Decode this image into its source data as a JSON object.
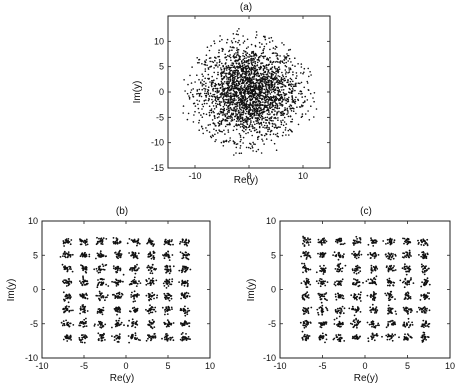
{
  "chart_data": [
    {
      "type": "scatter",
      "title": "(a)",
      "xlabel": "Re(y)",
      "ylabel": "Im(y)",
      "xlim": [
        -15,
        15
      ],
      "ylim": [
        -15,
        15
      ],
      "xticks": [
        -10,
        0,
        10
      ],
      "yticks": [
        -15,
        -10,
        -5,
        0,
        5,
        10
      ],
      "grid": false,
      "description_of_points": "dense unstructured cloud of received samples",
      "cloud": {
        "center": [
          0,
          0
        ],
        "extent_x": [
          -12,
          12
        ],
        "extent_y": [
          -12,
          12
        ]
      }
    },
    {
      "type": "scatter",
      "title": "(b)",
      "xlabel": "Re(y)",
      "ylabel": "Im(y)",
      "xlim": [
        -10,
        10
      ],
      "ylim": [
        -10,
        10
      ],
      "xticks": [
        -10,
        -5,
        0,
        5,
        10
      ],
      "yticks": [
        -10,
        -5,
        0,
        5,
        10
      ],
      "grid": false,
      "constellation_levels": [
        -7,
        -5,
        -3,
        -1,
        1,
        3,
        5,
        7
      ]
    },
    {
      "type": "scatter",
      "title": "(c)",
      "xlabel": "Re(y)",
      "ylabel": "Im(y)",
      "xlim": [
        -10,
        10
      ],
      "ylim": [
        -10,
        10
      ],
      "xticks": [
        -10,
        -5,
        0,
        5,
        10
      ],
      "yticks": [
        -10,
        -5,
        0,
        5,
        10
      ],
      "grid": false,
      "constellation_levels": [
        -7,
        -5,
        -3,
        -1,
        1,
        3,
        5,
        7
      ]
    }
  ]
}
